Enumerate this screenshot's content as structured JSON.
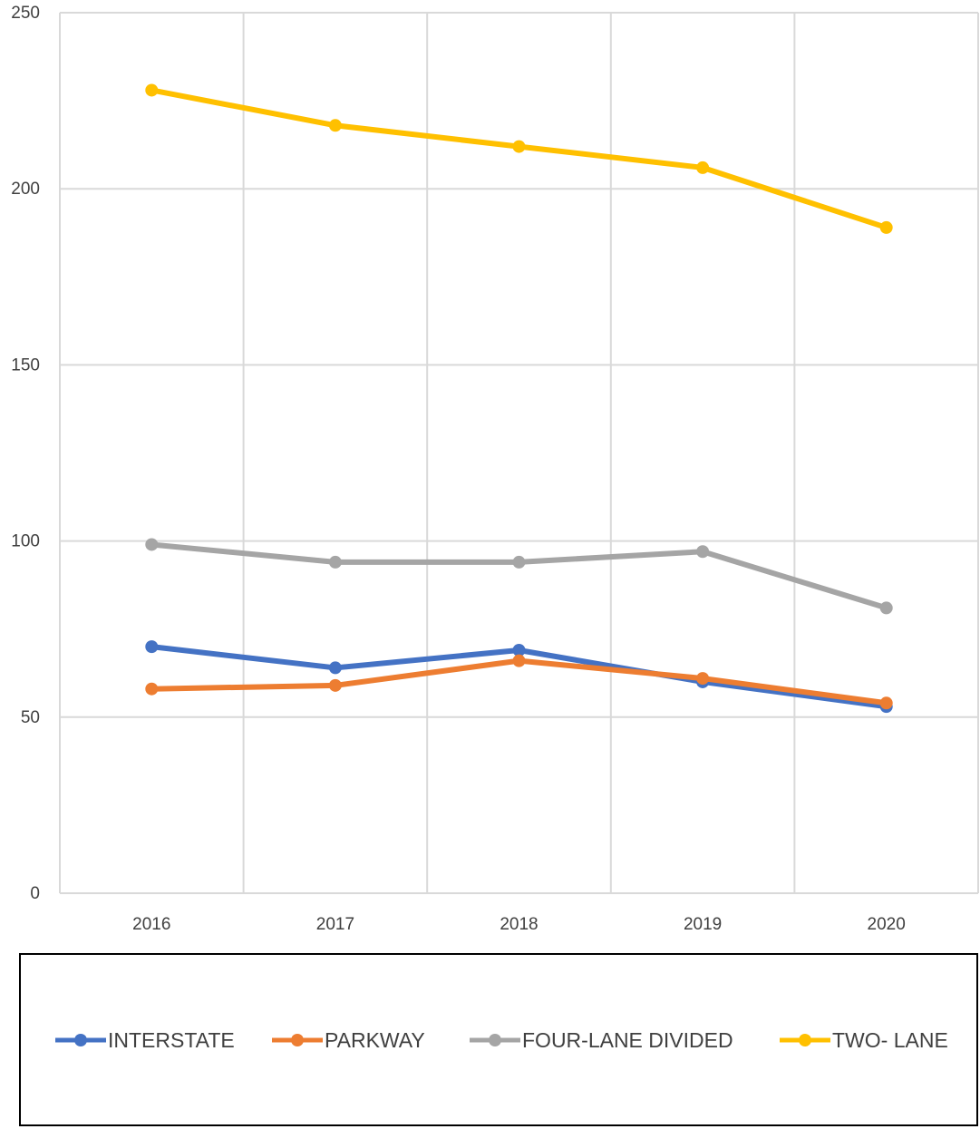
{
  "chart_data": {
    "type": "line",
    "title": "",
    "xlabel": "",
    "ylabel": "",
    "categories": [
      "2016",
      "2017",
      "2018",
      "2019",
      "2020"
    ],
    "ylim": [
      0,
      250
    ],
    "yticks": [
      "0",
      "50",
      "100",
      "150",
      "200",
      "250"
    ],
    "grid": true,
    "legend_position": "bottom",
    "series": [
      {
        "name": "INTERSTATE",
        "color": "#4472C4",
        "values": [
          70,
          64,
          69,
          60,
          53
        ]
      },
      {
        "name": "PARKWAY",
        "color": "#ED7D31",
        "values": [
          58,
          59,
          66,
          61,
          54
        ]
      },
      {
        "name": "FOUR-LANE DIVIDED",
        "color": "#A5A5A5",
        "values": [
          99,
          94,
          94,
          97,
          81
        ]
      },
      {
        "name": "TWO- LANE",
        "color": "#FFC000",
        "values": [
          228,
          218,
          212,
          206,
          189
        ]
      }
    ]
  }
}
